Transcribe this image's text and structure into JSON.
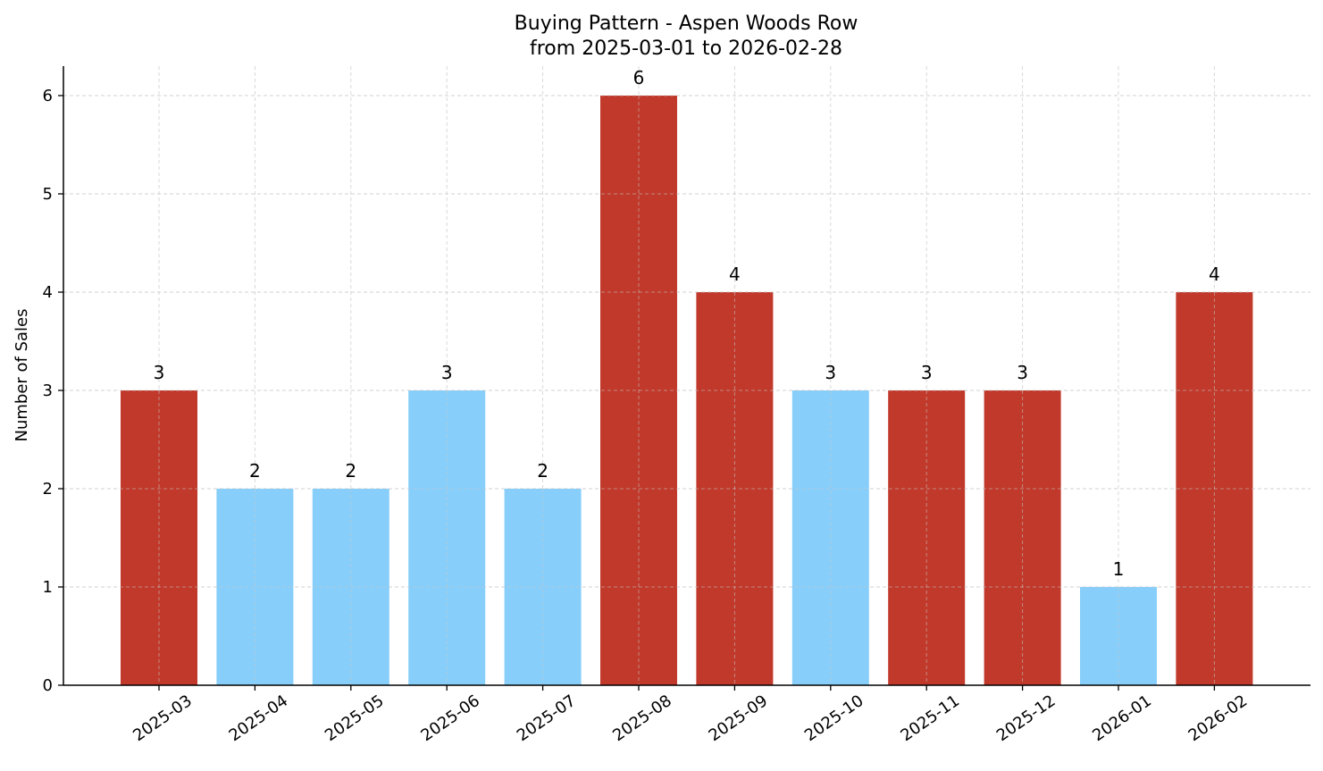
{
  "chart_data": {
    "type": "bar",
    "title": "Buying Pattern - Aspen Woods Row",
    "subtitle": "from 2025-03-01 to 2026-02-28",
    "xlabel": "",
    "ylabel": "Number of Sales",
    "ylim": [
      0,
      6.3
    ],
    "yticks": [
      0,
      1,
      2,
      3,
      4,
      5,
      6
    ],
    "grid": true,
    "categories": [
      "2025-03",
      "2025-04",
      "2025-05",
      "2025-06",
      "2025-07",
      "2025-08",
      "2025-09",
      "2025-10",
      "2025-11",
      "2025-12",
      "2026-01",
      "2026-02"
    ],
    "values": [
      3,
      2,
      2,
      3,
      2,
      6,
      4,
      3,
      3,
      3,
      1,
      4
    ],
    "bar_colors": [
      "#c0392b",
      "#87cefa",
      "#87cefa",
      "#87cefa",
      "#87cefa",
      "#c0392b",
      "#c0392b",
      "#87cefa",
      "#c0392b",
      "#c0392b",
      "#87cefa",
      "#c0392b"
    ]
  }
}
